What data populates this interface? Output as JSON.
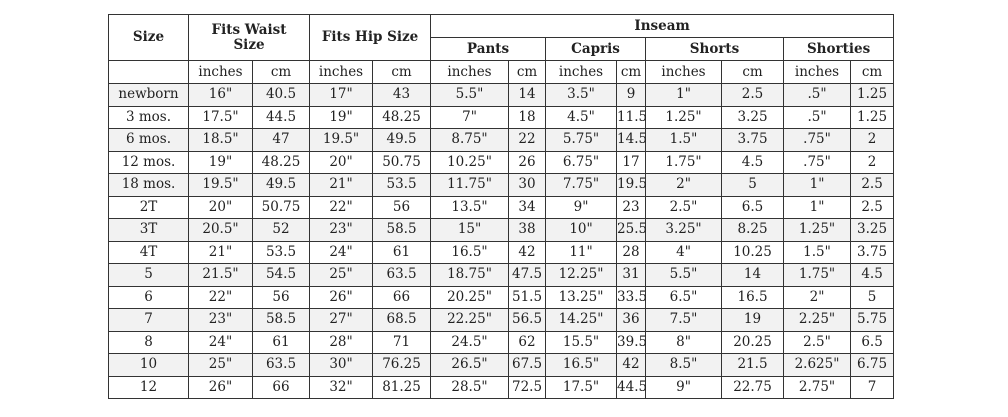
{
  "headers": {
    "size": "Size",
    "waist": "Fits Waist Size",
    "hip": "Fits Hip Size",
    "inseam": "Inseam",
    "pants": "Pants",
    "capris": "Capris",
    "shorts": "Shorts",
    "shorties": "Shorties",
    "inches": "inches",
    "cm": "cm"
  },
  "rows": [
    [
      "newborn",
      "16\"",
      "40.5",
      "17\"",
      "43",
      "5.5\"",
      "14",
      "3.5\"",
      "9",
      "1\"",
      "2.5",
      ".5\"",
      "1.25"
    ],
    [
      "3 mos.",
      "17.5\"",
      "44.5",
      "19\"",
      "48.25",
      "7\"",
      "18",
      "4.5\"",
      "11.5",
      "1.25\"",
      "3.25",
      ".5\"",
      "1.25"
    ],
    [
      "6 mos.",
      "18.5\"",
      "47",
      "19.5\"",
      "49.5",
      "8.75\"",
      "22",
      "5.75\"",
      "14.5",
      "1.5\"",
      "3.75",
      ".75\"",
      "2"
    ],
    [
      "12 mos.",
      "19\"",
      "48.25",
      "20\"",
      "50.75",
      "10.25\"",
      "26",
      "6.75\"",
      "17",
      "1.75\"",
      "4.5",
      ".75\"",
      "2"
    ],
    [
      "18 mos.",
      "19.5\"",
      "49.5",
      "21\"",
      "53.5",
      "11.75\"",
      "30",
      "7.75\"",
      "19.5",
      "2\"",
      "5",
      "1\"",
      "2.5"
    ],
    [
      "2T",
      "20\"",
      "50.75",
      "22\"",
      "56",
      "13.5\"",
      "34",
      "9\"",
      "23",
      "2.5\"",
      "6.5",
      "1\"",
      "2.5"
    ],
    [
      "3T",
      "20.5\"",
      "52",
      "23\"",
      "58.5",
      "15\"",
      "38",
      "10\"",
      "25.5",
      "3.25\"",
      "8.25",
      "1.25\"",
      "3.25"
    ],
    [
      "4T",
      "21\"",
      "53.5",
      "24\"",
      "61",
      "16.5\"",
      "42",
      "11\"",
      "28",
      "4\"",
      "10.25",
      "1.5\"",
      "3.75"
    ],
    [
      "5",
      "21.5\"",
      "54.5",
      "25\"",
      "63.5",
      "18.75\"",
      "47.5",
      "12.25\"",
      "31",
      "5.5\"",
      "14",
      "1.75\"",
      "4.5"
    ],
    [
      "6",
      "22\"",
      "56",
      "26\"",
      "66",
      "20.25\"",
      "51.5",
      "13.25\"",
      "33.5",
      "6.5\"",
      "16.5",
      "2\"",
      "5"
    ],
    [
      "7",
      "23\"",
      "58.5",
      "27\"",
      "68.5",
      "22.25\"",
      "56.5",
      "14.25\"",
      "36",
      "7.5\"",
      "19",
      "2.25\"",
      "5.75"
    ],
    [
      "8",
      "24\"",
      "61",
      "28\"",
      "71",
      "24.5\"",
      "62",
      "15.5\"",
      "39.5",
      "8\"",
      "20.25",
      "2.5\"",
      "6.5"
    ],
    [
      "10",
      "25\"",
      "63.5",
      "30\"",
      "76.25",
      "26.5\"",
      "67.5",
      "16.5\"",
      "42",
      "8.5\"",
      "21.5",
      "2.625\"",
      "6.75"
    ],
    [
      "12",
      "26\"",
      "66",
      "32\"",
      "81.25",
      "28.5\"",
      "72.5",
      "17.5\"",
      "44.5",
      "9\"",
      "22.75",
      "2.75\"",
      "7"
    ]
  ]
}
